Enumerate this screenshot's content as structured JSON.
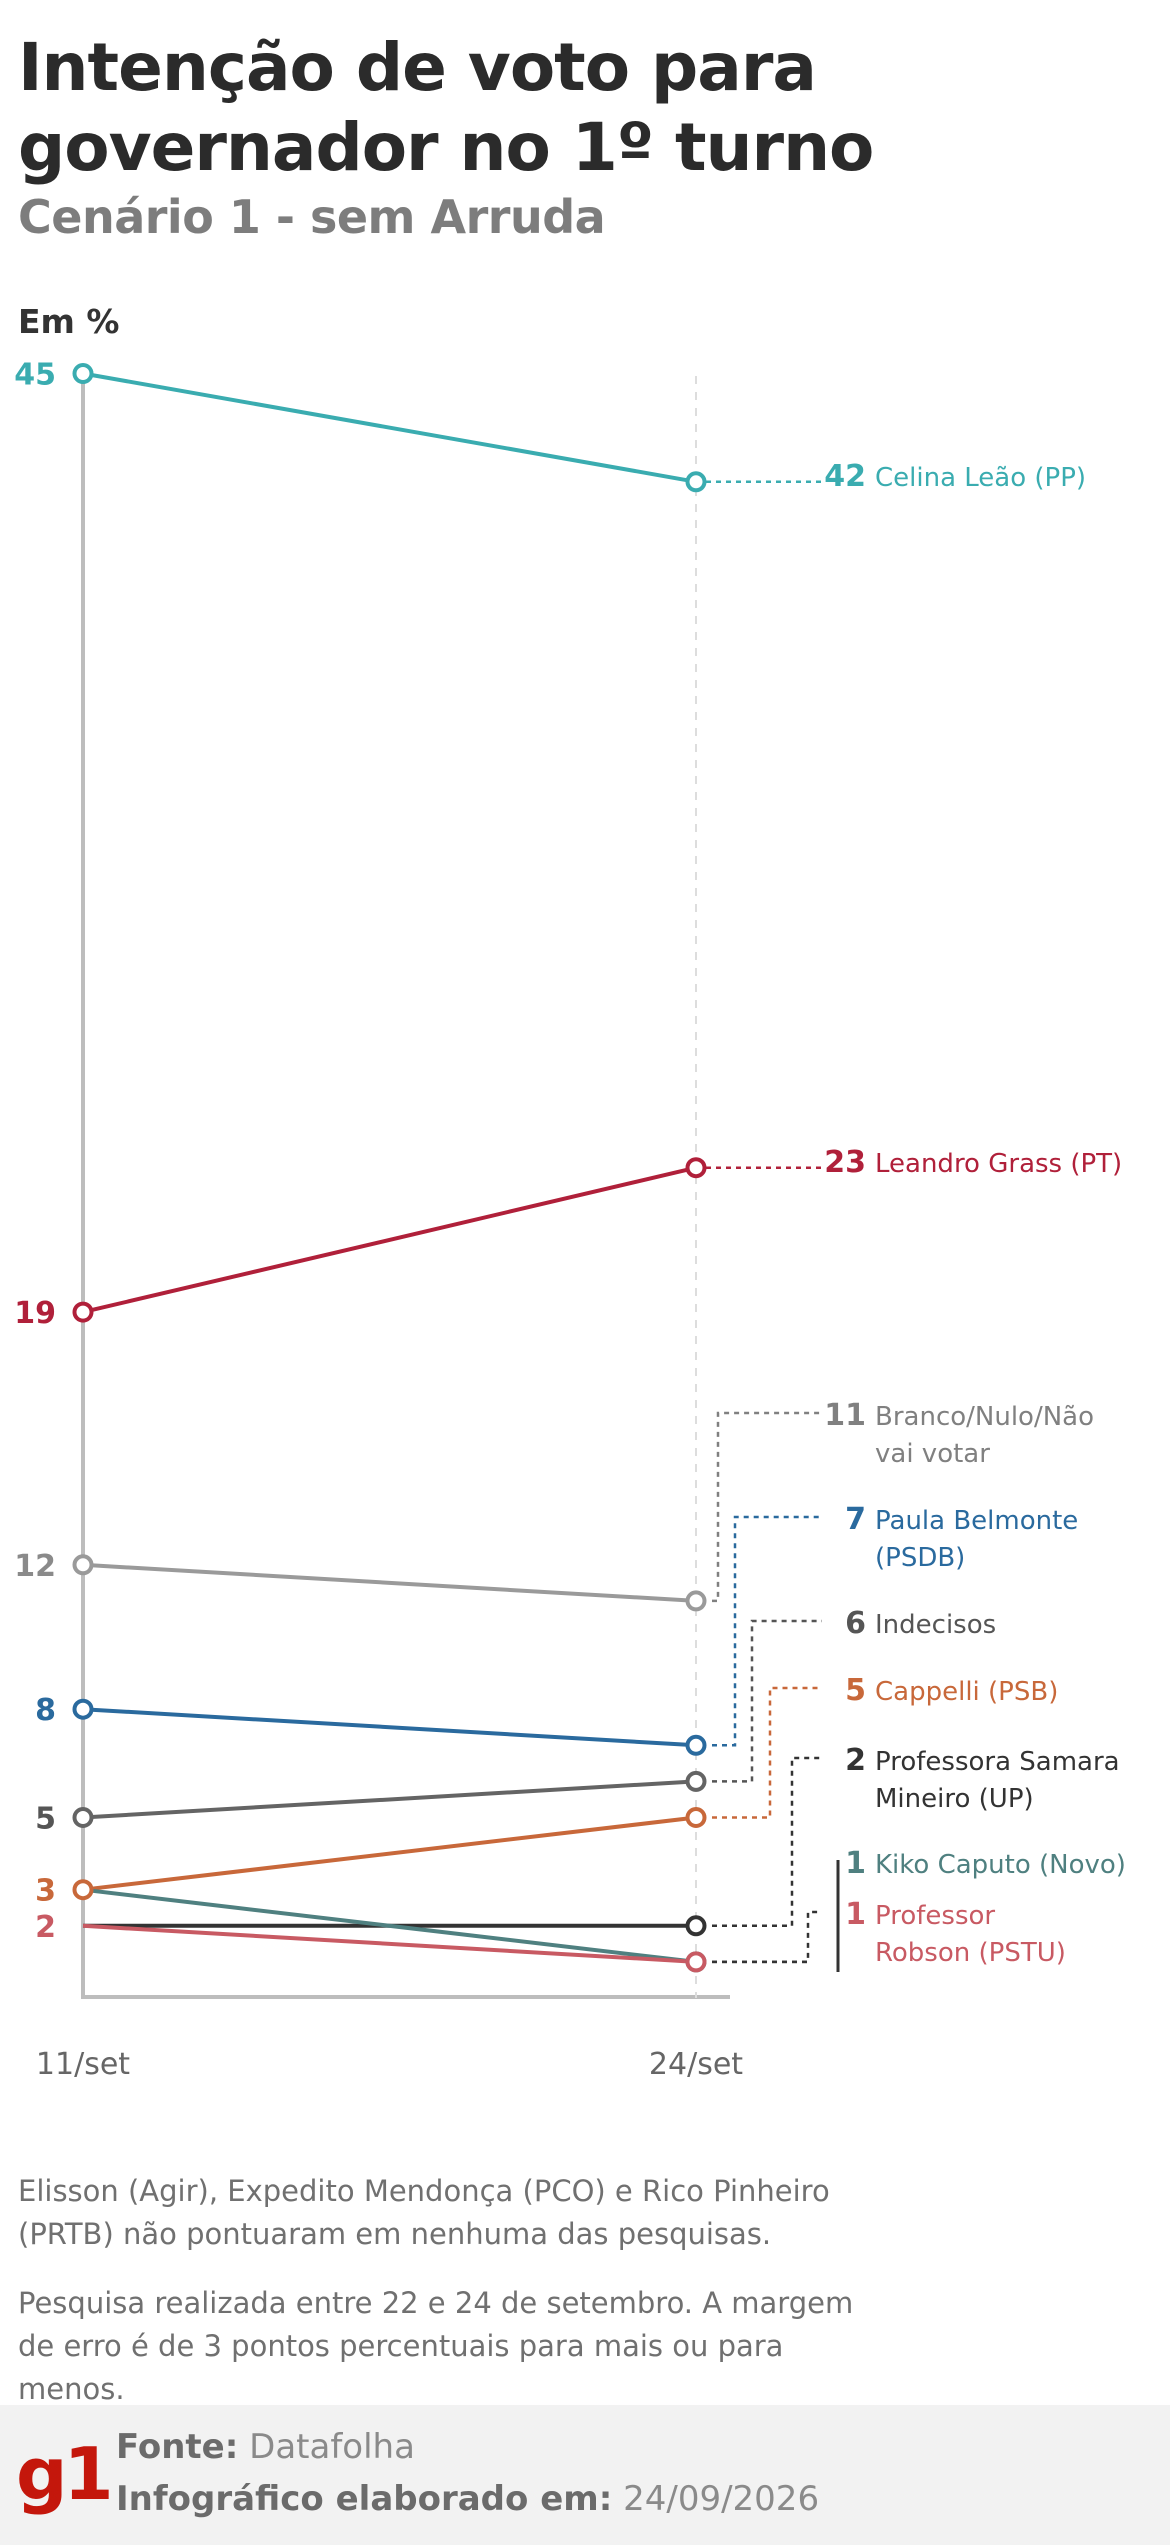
{
  "header": {
    "title": "Intenção de voto para governador no 1º turno",
    "subtitle": "Cenário 1 - sem Arruda",
    "unit": "Em %"
  },
  "chart_data": {
    "type": "line",
    "x": [
      "11/set",
      "24/set"
    ],
    "grid": false,
    "series": [
      {
        "name": "Celina Leão (PP)",
        "values": [
          45,
          42
        ],
        "color": "#3aacb0",
        "show_start": true
      },
      {
        "name": "Leandro Grass (PT)",
        "values": [
          19,
          23
        ],
        "color": "#b0203a",
        "show_start": true
      },
      {
        "name": "Branco/Nulo/Não vai votar",
        "values": [
          12,
          11
        ],
        "color": "#9a9a9a",
        "show_start": true
      },
      {
        "name": "Paula Belmonte (PSDB)",
        "values": [
          8,
          7
        ],
        "color": "#2a6a9e",
        "show_start": true
      },
      {
        "name": "Indecisos",
        "values": [
          5,
          6
        ],
        "color": "#646464",
        "show_start": true
      },
      {
        "name": "Cappelli (PSB)",
        "values": [
          3,
          5
        ],
        "color": "#c8683a",
        "show_start": true
      },
      {
        "name": "Professora Samara Mineiro (UP)",
        "values": [
          2,
          2
        ],
        "color": "#333333",
        "show_start": false
      },
      {
        "name": "Kiko Caputo (Novo)",
        "values": [
          3,
          1
        ],
        "color": "#4f8080",
        "show_start": false
      },
      {
        "name": "Professor Robson (PSTU)",
        "values": [
          2,
          1
        ],
        "color": "#c85a63",
        "show_start": false
      }
    ],
    "labels_end": [
      {
        "value": "42",
        "lines": [
          "Celina Leão (PP)"
        ],
        "color": "#3aacb0",
        "valcolor": "#3aacb0"
      },
      {
        "value": "23",
        "lines": [
          "Leandro Grass (PT)"
        ],
        "color": "#b0203a",
        "valcolor": "#b0203a"
      },
      {
        "value": "11",
        "lines": [
          "Branco/Nulo/Não",
          "vai votar"
        ],
        "color": "#808080",
        "valcolor": "#808080"
      },
      {
        "value": "7",
        "lines": [
          "Paula Belmonte",
          "(PSDB)"
        ],
        "color": "#2a6a9e",
        "valcolor": "#2a6a9e"
      },
      {
        "value": "6",
        "lines": [
          "Indecisos"
        ],
        "color": "#555555",
        "valcolor": "#555555"
      },
      {
        "value": "5",
        "lines": [
          "Cappelli (PSB)"
        ],
        "color": "#c8683a",
        "valcolor": "#c8683a"
      },
      {
        "value": "2",
        "lines": [
          "Professora Samara",
          "Mineiro (UP)"
        ],
        "color": "#333333",
        "valcolor": "#333333"
      },
      {
        "value": "1",
        "lines": [
          "Kiko Caputo (Novo)"
        ],
        "color": "#4f8080",
        "valcolor": "#4f8080"
      },
      {
        "value": "1",
        "lines": [
          "Professor",
          "Robson (PSTU)"
        ],
        "color": "#c85a63",
        "valcolor": "#c85a63"
      }
    ],
    "labels_start": [
      {
        "value": "45",
        "color": "#3aacb0"
      },
      {
        "value": "19",
        "color": "#b0203a"
      },
      {
        "value": "12",
        "color": "#8a8a8a"
      },
      {
        "value": "8",
        "color": "#2a6a9e"
      },
      {
        "value": "5",
        "color": "#555555"
      },
      {
        "value": "3",
        "color": "#c8683a"
      },
      {
        "value": "2",
        "color": "#c85a63"
      }
    ]
  },
  "notes": {
    "not_scoring": "Elisson (Agir), Expedito Mendonça (PCO) e Rico Pinheiro (PRTB) não pontuaram em nenhuma das pesquisas.",
    "methodology": "Pesquisa realizada entre 22 e 24 de setembro. A margem de erro é de 3 pontos percentuais para mais ou para menos."
  },
  "footer": {
    "logo": "g1",
    "source_label": "Fonte:",
    "source_value": "Datafolha",
    "made_label": "Infográfico elaborado em:",
    "made_value": "24/09/2026"
  }
}
